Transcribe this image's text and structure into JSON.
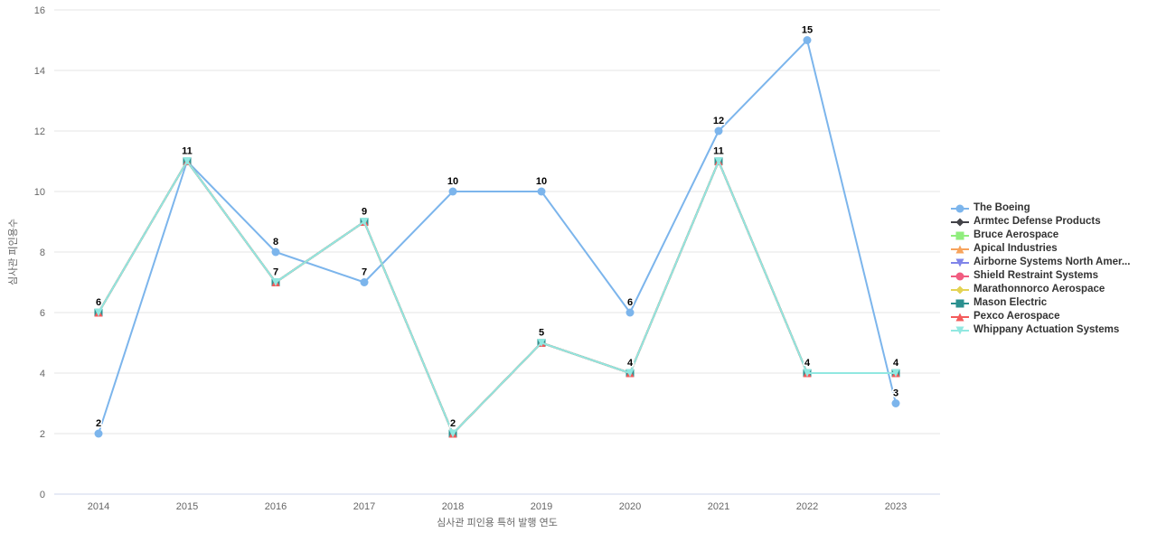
{
  "chart_data": {
    "type": "line",
    "title": "",
    "xlabel": "심사관 피인용 특허 발행 연도",
    "ylabel": "심사관 피인용수",
    "categories": [
      "2014",
      "2015",
      "2016",
      "2017",
      "2018",
      "2019",
      "2020",
      "2021",
      "2022",
      "2023"
    ],
    "ylim": [
      0,
      16
    ],
    "ytick_step": 2,
    "yticks": [
      0,
      2,
      4,
      6,
      8,
      10,
      12,
      14,
      16
    ],
    "grid": "horizontal-only",
    "legend_position": "right",
    "series": [
      {
        "name": "The Boeing",
        "color": "#7cb5ec",
        "marker": "circle",
        "values": [
          2,
          11,
          8,
          7,
          10,
          10,
          6,
          12,
          15,
          3
        ]
      },
      {
        "name": "Armtec Defense Products",
        "color": "#434348",
        "marker": "diamond",
        "values": [
          6,
          11,
          7,
          9,
          2,
          5,
          4,
          11,
          4,
          4
        ]
      },
      {
        "name": "Bruce Aerospace",
        "color": "#90ed7d",
        "marker": "square",
        "values": [
          6,
          11,
          7,
          9,
          2,
          5,
          4,
          11,
          4,
          4
        ]
      },
      {
        "name": "Apical Industries",
        "color": "#f7a35c",
        "marker": "triangle",
        "values": [
          6,
          11,
          7,
          9,
          2,
          5,
          4,
          11,
          4,
          4
        ]
      },
      {
        "name": "Airborne Systems North Amer...",
        "color": "#8085e9",
        "marker": "triangle-down",
        "values": [
          6,
          11,
          7,
          9,
          2,
          5,
          4,
          11,
          4,
          4
        ]
      },
      {
        "name": "Shield Restraint Systems",
        "color": "#f15c80",
        "marker": "circle",
        "values": [
          6,
          11,
          7,
          9,
          2,
          5,
          4,
          11,
          4,
          4
        ]
      },
      {
        "name": "Marathonnorco Aerospace",
        "color": "#e4d354",
        "marker": "diamond",
        "values": [
          6,
          11,
          7,
          9,
          2,
          5,
          4,
          11,
          4,
          4
        ]
      },
      {
        "name": "Mason Electric",
        "color": "#2b908f",
        "marker": "square",
        "values": [
          6,
          11,
          7,
          9,
          2,
          5,
          4,
          11,
          4,
          4
        ]
      },
      {
        "name": "Pexco Aerospace",
        "color": "#f45b5b",
        "marker": "triangle",
        "values": [
          6,
          11,
          7,
          9,
          2,
          5,
          4,
          11,
          4,
          4
        ]
      },
      {
        "name": "Whippany Actuation Systems",
        "color": "#91e8e1",
        "marker": "triangle-down",
        "values": [
          6,
          11,
          7,
          9,
          2,
          5,
          4,
          11,
          4,
          4
        ]
      }
    ],
    "colors": {
      "gridline": "#e6e6e6",
      "axis_line": "#ccd6eb",
      "tick_label": "#666666",
      "axis_title": "#666666",
      "data_label": "#000000",
      "legend_text": "#333333",
      "background": "#ffffff"
    }
  }
}
